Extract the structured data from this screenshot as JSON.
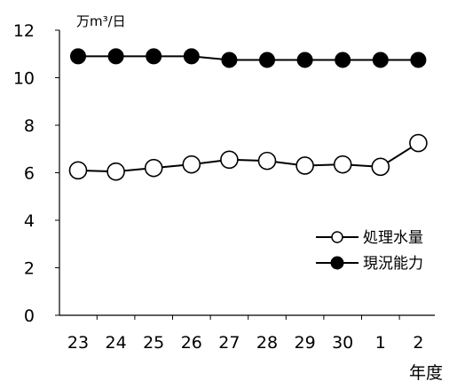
{
  "chart_data": {
    "type": "line",
    "categories": [
      "23",
      "24",
      "25",
      "26",
      "27",
      "28",
      "29",
      "30",
      "1",
      "2"
    ],
    "series": [
      {
        "name": "処理水量",
        "marker": "open-circle",
        "color": "#000000",
        "values": [
          6.1,
          6.05,
          6.2,
          6.35,
          6.55,
          6.5,
          6.3,
          6.35,
          6.25,
          7.25
        ]
      },
      {
        "name": "現況能力",
        "marker": "filled-circle",
        "color": "#000000",
        "values": [
          10.9,
          10.9,
          10.9,
          10.9,
          10.75,
          10.75,
          10.75,
          10.75,
          10.75,
          10.75
        ]
      }
    ],
    "yticks": [
      "0",
      "2",
      "4",
      "6",
      "8",
      "10",
      "12"
    ],
    "ylim": [
      0,
      12
    ],
    "ylabel": "万m³/日",
    "xlabel": "年度",
    "legend_position": "right",
    "grid": false
  }
}
